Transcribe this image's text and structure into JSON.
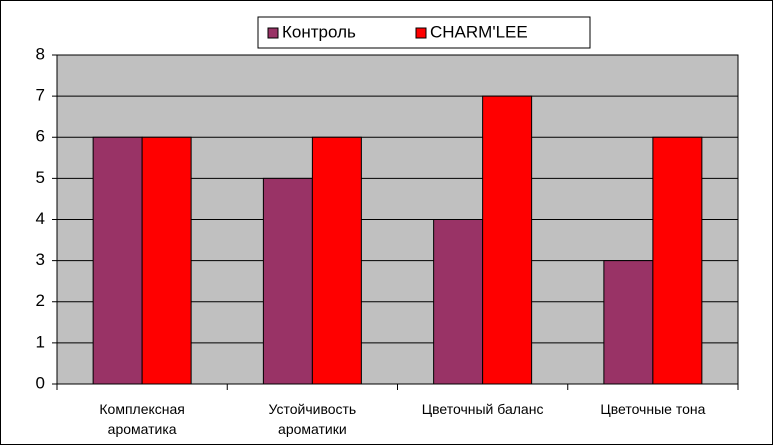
{
  "chart_data": {
    "type": "bar",
    "categories": [
      "Комплексная ароматика",
      "Устойчивость ароматики",
      "Цветочный баланс",
      "Цветочные тона"
    ],
    "series": [
      {
        "name": "Контроль",
        "color": "#993366",
        "values": [
          6,
          5,
          4,
          3
        ]
      },
      {
        "name": "CHARM'LEE",
        "color": "#ff0000",
        "values": [
          6,
          6,
          7,
          6
        ]
      }
    ],
    "ylim": [
      0,
      8
    ],
    "yticks": [
      0,
      1,
      2,
      3,
      4,
      5,
      6,
      7,
      8
    ],
    "grid": true,
    "legend": "top"
  }
}
